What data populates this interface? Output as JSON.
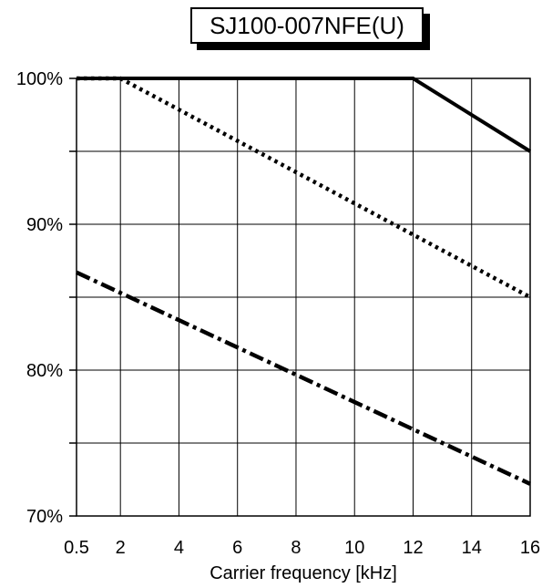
{
  "chart_data": {
    "type": "line",
    "title": "SJ100-007NFE(U)",
    "xlabel": "Carrier frequency [kHz]",
    "ylabel": "",
    "xlim": [
      0.5,
      16
    ],
    "ylim": [
      70,
      100
    ],
    "x_ticks": [
      0.5,
      2,
      4,
      6,
      8,
      10,
      12,
      14,
      16
    ],
    "x_tick_labels": [
      "0.5",
      "2",
      "4",
      "6",
      "8",
      "10",
      "12",
      "14",
      "16"
    ],
    "y_grid": [
      70,
      75,
      80,
      85,
      90,
      95,
      100
    ],
    "y_tick_values": [
      70,
      80,
      90,
      100
    ],
    "y_tick_labels": [
      "70%",
      "80%",
      "90%",
      "100%"
    ],
    "grid": true,
    "legend": "none",
    "series": [
      {
        "style": "solid",
        "color": "#000000",
        "points": [
          [
            0.5,
            100
          ],
          [
            12,
            100
          ],
          [
            16,
            95
          ]
        ]
      },
      {
        "style": "dotted",
        "color": "#000000",
        "points": [
          [
            0.5,
            100
          ],
          [
            2,
            100
          ],
          [
            16,
            85
          ]
        ]
      },
      {
        "style": "dash-dot",
        "color": "#000000",
        "points": [
          [
            0.5,
            86.7
          ],
          [
            16,
            72.2
          ]
        ]
      }
    ]
  }
}
